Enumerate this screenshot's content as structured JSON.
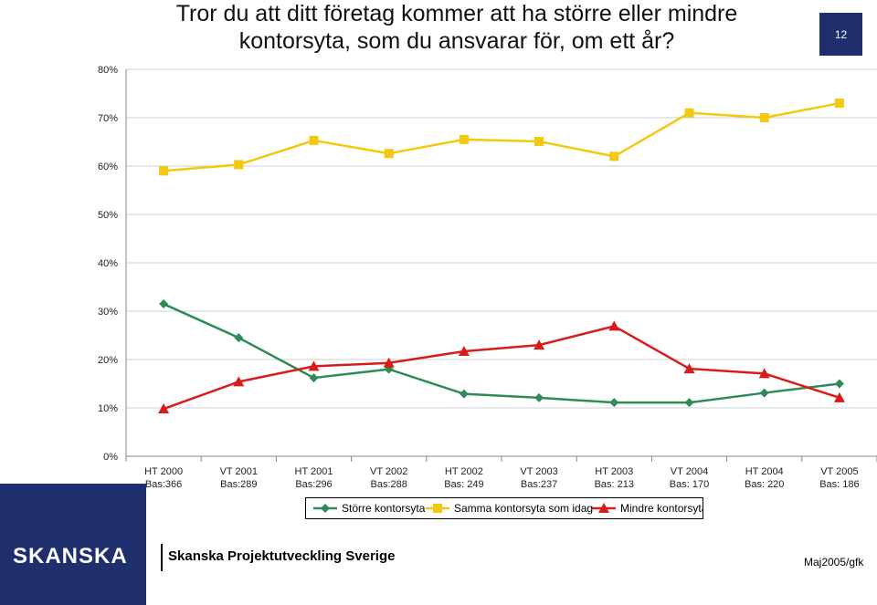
{
  "title": "Tror du att ditt företag kommer att ha större eller mindre kontorsyta, som du ansvarar för, om ett år?",
  "page_number": "12",
  "footer": {
    "brand": "SKANSKA",
    "org": "Skanska Projektutveckling Sverige",
    "date": "Maj2005/gfk"
  },
  "chart_data": {
    "type": "line",
    "categories": [
      "HT 2000",
      "VT 2001",
      "HT 2001",
      "VT 2002",
      "HT 2002",
      "VT 2003",
      "HT 2003",
      "VT 2004",
      "HT 2004",
      "VT 2005"
    ],
    "bases": [
      "Bas:366",
      "Bas:289",
      "Bas:296",
      "Bas:288",
      "Bas: 249",
      "Bas:237",
      "Bas: 213",
      "Bas: 170",
      "Bas: 220",
      "Bas: 186"
    ],
    "yticks": [
      "0%",
      "10%",
      "20%",
      "30%",
      "40%",
      "50%",
      "60%",
      "70%",
      "80%"
    ],
    "ylim": [
      0,
      80
    ],
    "grid": true,
    "legend_position": "bottom",
    "series": [
      {
        "name": "Större kontorsyta",
        "color": "#2e8b57",
        "marker": "diamond",
        "values": [
          31.5,
          24.5,
          16.2,
          18.0,
          12.9,
          12.1,
          11.1,
          11.1,
          13.1,
          15.0
        ]
      },
      {
        "name": "Samma kontorsyta som idag",
        "color": "#f2c811",
        "marker": "square",
        "values": [
          59.0,
          60.3,
          65.3,
          62.6,
          65.5,
          65.1,
          62.0,
          71.0,
          70.0,
          73.0
        ]
      },
      {
        "name": "Mindre kontorsyta",
        "color": "#d81c1c",
        "marker": "triangle",
        "values": [
          9.8,
          15.4,
          18.6,
          19.3,
          21.7,
          23.0,
          26.9,
          18.1,
          17.1,
          12.1
        ]
      }
    ]
  }
}
